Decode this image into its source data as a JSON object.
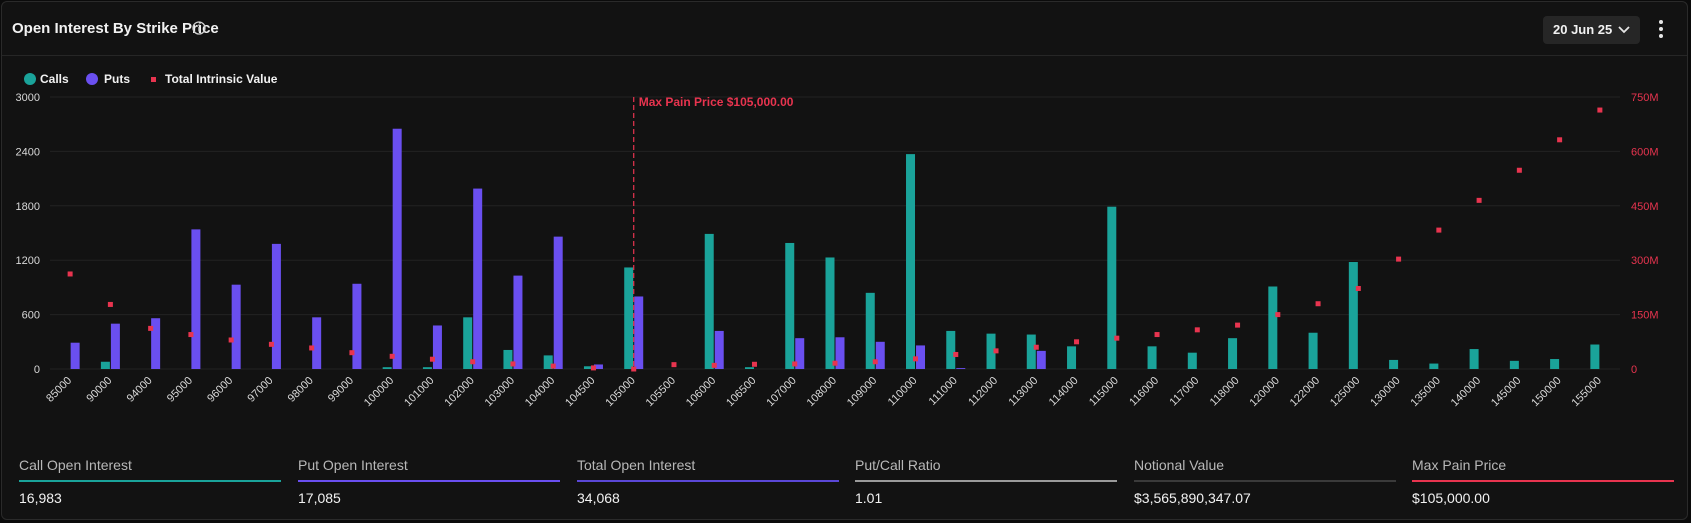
{
  "header": {
    "title": "Open Interest By Strike Price",
    "date": "20 Jun 25"
  },
  "legend": [
    {
      "label": "Calls",
      "color": "#1aa39a",
      "shape": "circle"
    },
    {
      "label": "Puts",
      "color": "#6a4ff0",
      "shape": "circle"
    },
    {
      "label": "Total Intrinsic Value",
      "color": "#e8344f",
      "shape": "square"
    }
  ],
  "chart_data": {
    "type": "bar",
    "categories": [
      "85000",
      "90000",
      "94000",
      "95000",
      "96000",
      "97000",
      "98000",
      "99000",
      "100000",
      "101000",
      "102000",
      "103000",
      "104000",
      "104500",
      "105000",
      "105500",
      "106000",
      "106500",
      "107000",
      "108000",
      "109000",
      "110000",
      "111000",
      "112000",
      "113000",
      "114000",
      "115000",
      "116000",
      "117000",
      "118000",
      "120000",
      "122000",
      "125000",
      "130000",
      "135000",
      "140000",
      "145000",
      "150000",
      "155000"
    ],
    "series": [
      {
        "name": "Calls",
        "color": "#1aa39a",
        "axis": "left",
        "values": [
          0,
          80,
          0,
          0,
          0,
          0,
          0,
          0,
          20,
          20,
          570,
          210,
          150,
          30,
          1120,
          0,
          1490,
          20,
          1390,
          1230,
          840,
          2370,
          420,
          390,
          380,
          250,
          1790,
          250,
          180,
          340,
          910,
          400,
          1180,
          100,
          60,
          220,
          90,
          110,
          270
        ]
      },
      {
        "name": "Puts",
        "color": "#6a4ff0",
        "axis": "left",
        "values": [
          290,
          500,
          560,
          1540,
          930,
          1380,
          570,
          940,
          2650,
          480,
          1990,
          1030,
          1460,
          50,
          800,
          0,
          420,
          0,
          340,
          350,
          300,
          260,
          10,
          0,
          200,
          0,
          0,
          0,
          0,
          0,
          0,
          0,
          0,
          0,
          0,
          0,
          0,
          0,
          0
        ]
      },
      {
        "name": "Total Intrinsic Value",
        "color": "#e8344f",
        "axis": "right",
        "type": "scatter",
        "values": [
          262,
          178,
          112,
          95,
          80,
          68,
          58,
          45,
          35,
          27,
          20,
          14,
          8,
          3,
          0,
          12,
          10,
          13,
          14,
          16,
          20,
          28,
          40,
          50,
          60,
          75,
          85,
          95,
          108,
          121,
          150,
          180,
          222,
          303,
          383,
          465,
          548,
          632,
          714
        ]
      }
    ],
    "ylim": [
      0,
      3000
    ],
    "yticks": [
      "3000",
      "2400",
      "1800",
      "1200",
      "600",
      "0"
    ],
    "y2lim": [
      0,
      750
    ],
    "y2ticks": [
      "750M",
      "600M",
      "450M",
      "300M",
      "150M",
      "0"
    ],
    "annotation": {
      "label": "Max Pain Price $105,000.00",
      "category": "105000",
      "color": "#e8344f"
    },
    "grid": true
  },
  "stats": [
    {
      "label": "Call Open Interest",
      "value": "16,983",
      "color": "#1aa39a"
    },
    {
      "label": "Put Open Interest",
      "value": "17,085",
      "color": "#6a4ff0"
    },
    {
      "label": "Total Open Interest",
      "value": "34,068",
      "color": "#5a47d6"
    },
    {
      "label": "Put/Call Ratio",
      "value": "1.01",
      "color": "#9a9a9a"
    },
    {
      "label": "Notional Value",
      "value": "$3,565,890,347.07",
      "color": "#3a3a3a"
    },
    {
      "label": "Max Pain Price",
      "value": "$105,000.00",
      "color": "#e8344f"
    }
  ]
}
